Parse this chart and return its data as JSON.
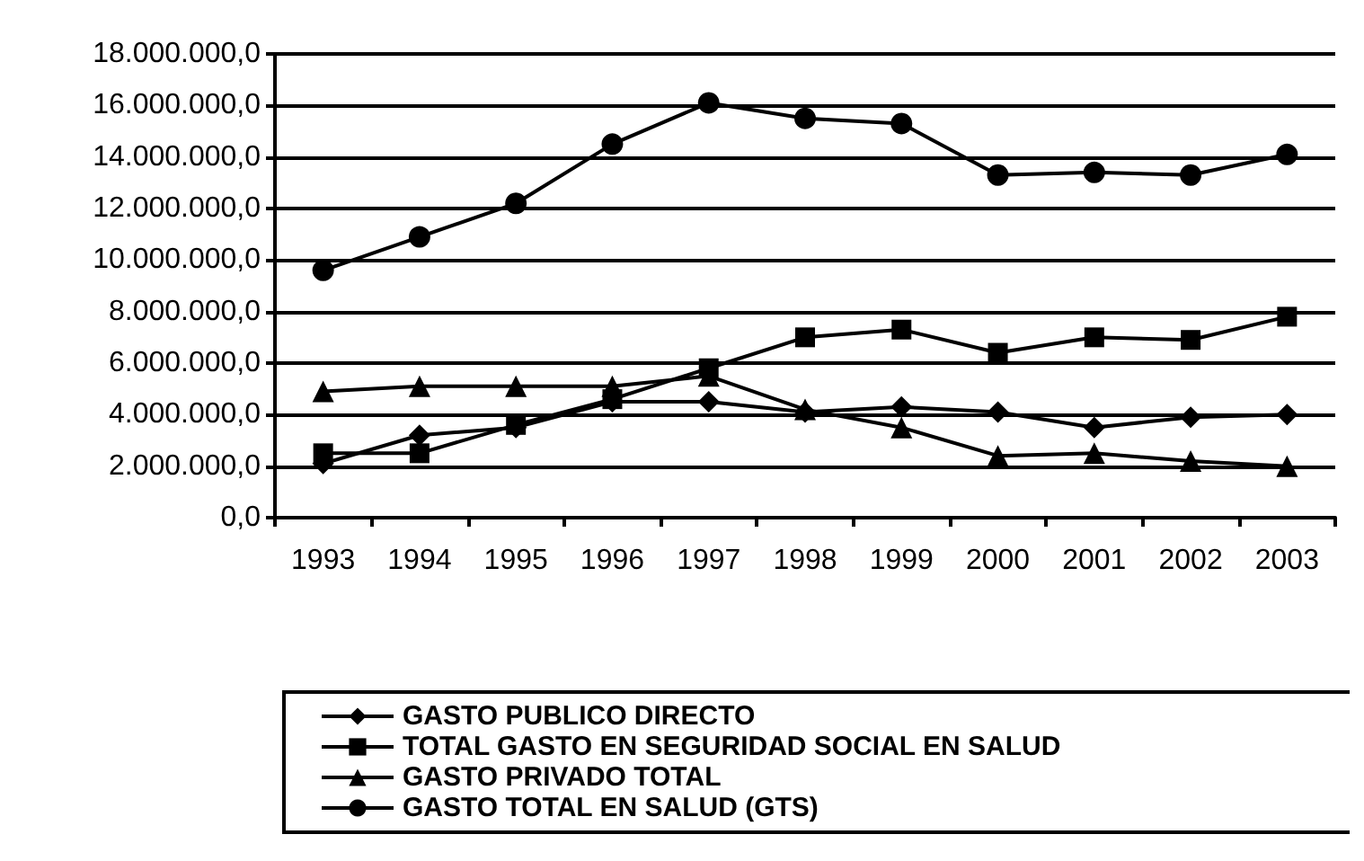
{
  "chart_data": {
    "type": "line",
    "categories": [
      "1993",
      "1994",
      "1995",
      "1996",
      "1997",
      "1998",
      "1999",
      "2000",
      "2001",
      "2002",
      "2003"
    ],
    "series": [
      {
        "name": "GASTO PUBLICO DIRECTO",
        "color": "#000000",
        "marker": "diamond",
        "values": [
          2100000,
          3200000,
          3500000,
          4500000,
          4500000,
          4100000,
          4300000,
          4100000,
          3500000,
          3900000,
          4000000
        ]
      },
      {
        "name": "TOTAL GASTO EN SEGURIDAD SOCIAL EN SALUD",
        "color": "#000000",
        "marker": "square",
        "values": [
          2500000,
          2500000,
          3600000,
          4600000,
          5800000,
          7000000,
          7300000,
          6400000,
          7000000,
          6900000,
          7800000
        ]
      },
      {
        "name": "GASTO PRIVADO TOTAL",
        "color": "#000000",
        "marker": "triangle",
        "values": [
          4900000,
          5100000,
          5100000,
          5100000,
          5500000,
          4200000,
          3500000,
          2400000,
          2500000,
          2200000,
          2000000
        ]
      },
      {
        "name": "GASTO TOTAL EN SALUD (GTS)",
        "color": "#000000",
        "marker": "circle",
        "values": [
          9600000,
          10900000,
          12200000,
          14500000,
          16100000,
          15500000,
          15300000,
          13300000,
          13400000,
          13300000,
          14100000
        ]
      }
    ],
    "ylim": [
      0,
      18000000
    ],
    "yticks": [
      {
        "value": 0,
        "label": "0,0"
      },
      {
        "value": 2000000,
        "label": "2.000.000,0"
      },
      {
        "value": 4000000,
        "label": "4.000.000,0"
      },
      {
        "value": 6000000,
        "label": "6.000.000,0"
      },
      {
        "value": 8000000,
        "label": "8.000.000,0"
      },
      {
        "value": 10000000,
        "label": "10.000.000,0"
      },
      {
        "value": 12000000,
        "label": "12.000.000,0"
      },
      {
        "value": 14000000,
        "label": "14.000.000,0"
      },
      {
        "value": 16000000,
        "label": "16.000.000,0"
      },
      {
        "value": 18000000,
        "label": "18.000.000,0"
      }
    ],
    "grid": "y",
    "legend": "bottom",
    "line_style": "solid"
  }
}
